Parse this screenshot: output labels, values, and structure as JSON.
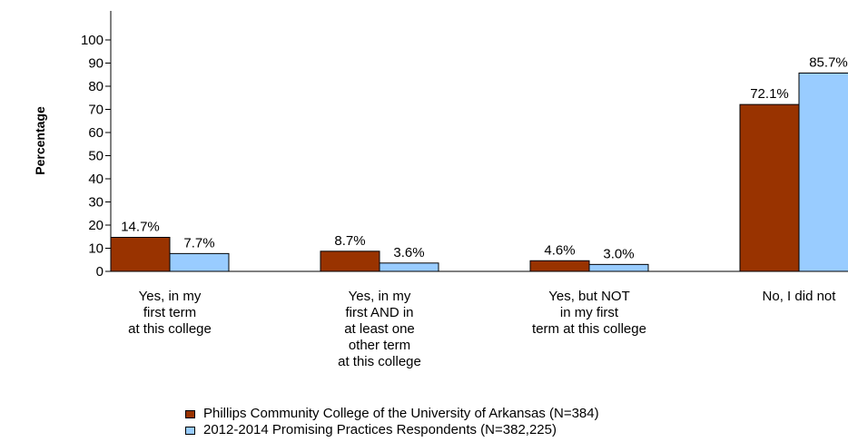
{
  "chart_data": {
    "type": "bar",
    "ylabel": "Percentage",
    "xlabel": "",
    "ylim": [
      0,
      100
    ],
    "yticks": [
      0,
      10,
      20,
      30,
      40,
      50,
      60,
      70,
      80,
      90,
      100
    ],
    "categories": [
      [
        "Yes, in my",
        "first term",
        "at this college"
      ],
      [
        "Yes, in my",
        "first AND in",
        "at least one",
        "other term",
        "at this college"
      ],
      [
        "Yes, but NOT",
        "in my first",
        "term at this college"
      ],
      [
        "No, I did not"
      ]
    ],
    "series": [
      {
        "name": "Phillips Community College of the University of Arkansas (N=384)",
        "color": "#993300",
        "values": [
          14.7,
          8.7,
          4.6,
          72.1
        ],
        "labels": [
          "14.7%",
          "8.7%",
          "4.6%",
          "72.1%"
        ]
      },
      {
        "name": "2012-2014 Promising Practices Respondents (N=382,225)",
        "color": "#99ccff",
        "values": [
          7.7,
          3.6,
          3.0,
          85.7
        ],
        "labels": [
          "7.7%",
          "3.6%",
          "3.0%",
          "85.7%"
        ]
      }
    ],
    "legend_position": "bottom"
  }
}
